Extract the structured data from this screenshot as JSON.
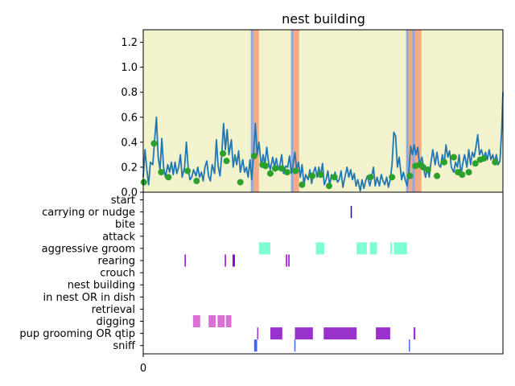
{
  "title": "nest building",
  "chart_data": [
    {
      "type": "line",
      "title": "nest building",
      "xlim": [
        0,
        600
      ],
      "ylim": [
        0,
        1.3
      ],
      "yticks": [
        "0.0",
        "0.2",
        "0.4",
        "0.6",
        "0.8",
        "1.0",
        "1.2"
      ],
      "ytick_values": [
        0,
        0.2,
        0.4,
        0.6,
        0.8,
        1.0,
        1.2
      ],
      "background_color": "#f2f2cc",
      "line_color": "#1f77b4",
      "marker_color": "#2ca02c",
      "highlight_spans": [
        {
          "x": [
            181,
            193
          ],
          "color": "#f4a582"
        },
        {
          "x": [
            249,
            260
          ],
          "color": "#f4a582"
        },
        {
          "x": [
            440,
            464
          ],
          "color": "#f4a582"
        }
      ],
      "marker_lines": [
        {
          "x": 181.5,
          "color": "#8ea8e0"
        },
        {
          "x": 248.5,
          "color": "#8ea8e0"
        },
        {
          "x": 440.5,
          "color": "#8ea8e0"
        },
        {
          "x": 451,
          "color": "#8ea8e0"
        }
      ],
      "series": [
        {
          "values": [
            [
              0,
              0.12
            ],
            [
              3,
              0.34
            ],
            [
              6,
              0.18
            ],
            [
              9,
              0.06
            ],
            [
              12,
              0.24
            ],
            [
              16,
              0.22
            ],
            [
              19,
              0.42
            ],
            [
              22,
              0.6
            ],
            [
              25,
              0.28
            ],
            [
              28,
              0.18
            ],
            [
              31,
              0.43
            ],
            [
              34,
              0.2
            ],
            [
              37,
              0.12
            ],
            [
              41,
              0.22
            ],
            [
              44,
              0.16
            ],
            [
              47,
              0.24
            ],
            [
              50,
              0.14
            ],
            [
              53,
              0.24
            ],
            [
              56,
              0.15
            ],
            [
              59,
              0.2
            ],
            [
              62,
              0.3
            ],
            [
              65,
              0.12
            ],
            [
              69,
              0.2
            ],
            [
              72,
              0.4
            ],
            [
              75,
              0.19
            ],
            [
              78,
              0.1
            ],
            [
              81,
              0.12
            ],
            [
              84,
              0.18
            ],
            [
              88,
              0.13
            ],
            [
              91,
              0.2
            ],
            [
              94,
              0.12
            ],
            [
              97,
              0.16
            ],
            [
              100,
              0.09
            ],
            [
              103,
              0.2
            ],
            [
              106,
              0.25
            ],
            [
              109,
              0.13
            ],
            [
              112,
              0.09
            ],
            [
              115,
              0.22
            ],
            [
              119,
              0.15
            ],
            [
              122,
              0.42
            ],
            [
              125,
              0.21
            ],
            [
              128,
              0.13
            ],
            [
              131,
              0.3
            ],
            [
              134,
              0.55
            ],
            [
              137,
              0.34
            ],
            [
              140,
              0.5
            ],
            [
              143,
              0.3
            ],
            [
              147,
              0.42
            ],
            [
              150,
              0.2
            ],
            [
              153,
              0.3
            ],
            [
              156,
              0.22
            ],
            [
              159,
              0.33
            ],
            [
              162,
              0.16
            ],
            [
              166,
              0.26
            ],
            [
              169,
              0.16
            ],
            [
              172,
              0.2
            ],
            [
              175,
              0.12
            ],
            [
              178,
              0.26
            ],
            [
              181,
              0.1
            ],
            [
              184,
              0.3
            ],
            [
              187,
              0.55
            ],
            [
              190,
              0.3
            ],
            [
              193,
              0.4
            ],
            [
              197,
              0.2
            ],
            [
              200,
              0.3
            ],
            [
              203,
              0.22
            ],
            [
              206,
              0.36
            ],
            [
              209,
              0.24
            ],
            [
              212,
              0.18
            ],
            [
              216,
              0.28
            ],
            [
              219,
              0.2
            ],
            [
              222,
              0.27
            ],
            [
              225,
              0.18
            ],
            [
              228,
              0.22
            ],
            [
              231,
              0.3
            ],
            [
              234,
              0.15
            ],
            [
              238,
              0.21
            ],
            [
              241,
              0.2
            ],
            [
              244,
              0.29
            ],
            [
              247,
              0.15
            ],
            [
              250,
              0.22
            ],
            [
              253,
              0.32
            ],
            [
              256,
              0.18
            ],
            [
              259,
              0.24
            ],
            [
              262,
              0.12
            ],
            [
              265,
              0.22
            ],
            [
              268,
              0.06
            ],
            [
              271,
              0.14
            ],
            [
              275,
              0.1
            ],
            [
              278,
              0.18
            ],
            [
              281,
              0.07
            ],
            [
              284,
              0.16
            ],
            [
              287,
              0.2
            ],
            [
              290,
              0.12
            ],
            [
              293,
              0.2
            ],
            [
              296,
              0.13
            ],
            [
              299,
              0.23
            ],
            [
              302,
              0.06
            ],
            [
              305,
              0.1
            ],
            [
              308,
              0.17
            ],
            [
              311,
              0.05
            ],
            [
              314,
              0.14
            ],
            [
              317,
              0.1
            ],
            [
              320,
              0.16
            ],
            [
              324,
              0.08
            ],
            [
              327,
              0.1
            ],
            [
              330,
              0.17
            ],
            [
              333,
              0.04
            ],
            [
              336,
              0.11
            ],
            [
              340,
              0.2
            ],
            [
              343,
              0.12
            ],
            [
              346,
              0.18
            ],
            [
              349,
              0.1
            ],
            [
              352,
              0.15
            ],
            [
              355,
              0.05
            ],
            [
              358,
              0.1
            ],
            [
              362,
              0.01
            ],
            [
              365,
              0.1
            ],
            [
              368,
              0.03
            ],
            [
              371,
              0.09
            ],
            [
              374,
              0.13
            ],
            [
              378,
              0.05
            ],
            [
              381,
              0.12
            ],
            [
              384,
              0.2
            ],
            [
              387,
              0.05
            ],
            [
              390,
              0.12
            ],
            [
              394,
              0.05
            ],
            [
              397,
              0.14
            ],
            [
              400,
              0.09
            ],
            [
              403,
              0.06
            ],
            [
              406,
              0.12
            ],
            [
              409,
              0.04
            ],
            [
              412,
              0.1
            ],
            [
              415,
              0.22
            ],
            [
              418,
              0.48
            ],
            [
              421,
              0.45
            ],
            [
              424,
              0.2
            ],
            [
              427,
              0.28
            ],
            [
              431,
              0.1
            ],
            [
              434,
              0.16
            ],
            [
              437,
              0.1
            ],
            [
              440,
              0.05
            ],
            [
              443,
              0.15
            ],
            [
              446,
              0.37
            ],
            [
              449,
              0.3
            ],
            [
              452,
              0.38
            ],
            [
              455,
              0.3
            ],
            [
              458,
              0.36
            ],
            [
              461,
              0.22
            ],
            [
              465,
              0.28
            ],
            [
              468,
              0.18
            ],
            [
              471,
              0.12
            ],
            [
              474,
              0.2
            ],
            [
              477,
              0.12
            ],
            [
              480,
              0.24
            ],
            [
              483,
              0.34
            ],
            [
              487,
              0.22
            ],
            [
              490,
              0.32
            ],
            [
              493,
              0.22
            ],
            [
              496,
              0.2
            ],
            [
              499,
              0.3
            ],
            [
              502,
              0.22
            ],
            [
              505,
              0.38
            ],
            [
              508,
              0.28
            ],
            [
              511,
              0.33
            ],
            [
              514,
              0.2
            ],
            [
              518,
              0.16
            ],
            [
              521,
              0.24
            ],
            [
              524,
              0.2
            ],
            [
              527,
              0.3
            ],
            [
              530,
              0.14
            ],
            [
              533,
              0.23
            ],
            [
              536,
              0.3
            ],
            [
              540,
              0.2
            ],
            [
              543,
              0.34
            ],
            [
              546,
              0.22
            ],
            [
              549,
              0.32
            ],
            [
              552,
              0.28
            ],
            [
              555,
              0.36
            ],
            [
              558,
              0.46
            ],
            [
              561,
              0.3
            ],
            [
              564,
              0.34
            ],
            [
              568,
              0.27
            ],
            [
              571,
              0.32
            ],
            [
              574,
              0.26
            ],
            [
              577,
              0.34
            ],
            [
              580,
              0.26
            ],
            [
              583,
              0.3
            ],
            [
              586,
              0.24
            ],
            [
              589,
              0.3
            ],
            [
              592,
              0.22
            ],
            [
              595,
              0.25
            ],
            [
              598,
              0.5
            ],
            [
              600,
              0.8
            ]
          ]
        }
      ],
      "points": [
        [
          1,
          0.08
        ],
        [
          18,
          0.39
        ],
        [
          30,
          0.16
        ],
        [
          42,
          0.12
        ],
        [
          74,
          0.17
        ],
        [
          89,
          0.09
        ],
        [
          133,
          0.31
        ],
        [
          139,
          0.25
        ],
        [
          162,
          0.08
        ],
        [
          185,
          0.29
        ],
        [
          199,
          0.22
        ],
        [
          204,
          0.21
        ],
        [
          212,
          0.15
        ],
        [
          220,
          0.19
        ],
        [
          231,
          0.19
        ],
        [
          240,
          0.16
        ],
        [
          254,
          0.17
        ],
        [
          265,
          0.06
        ],
        [
          282,
          0.13
        ],
        [
          296,
          0.14
        ],
        [
          310,
          0.05
        ],
        [
          319,
          0.12
        ],
        [
          379,
          0.12
        ],
        [
          415,
          0.12
        ],
        [
          445,
          0.13
        ],
        [
          454,
          0.21
        ],
        [
          461,
          0.22
        ],
        [
          467,
          0.2
        ],
        [
          475,
          0.18
        ],
        [
          490,
          0.13
        ],
        [
          502,
          0.24
        ],
        [
          518,
          0.28
        ],
        [
          525,
          0.16
        ],
        [
          532,
          0.14
        ],
        [
          543,
          0.16
        ],
        [
          554,
          0.23
        ],
        [
          562,
          0.26
        ],
        [
          568,
          0.27
        ],
        [
          587,
          0.24
        ]
      ]
    },
    {
      "type": "event-raster",
      "xlim": [
        0,
        600
      ],
      "xticks": [
        "0"
      ],
      "categories": [
        "start",
        "carrying or nudge",
        "bite",
        "attack",
        "aggressive groom",
        "rearing",
        "crouch",
        "nest building",
        "in nest OR in dish",
        "retrieval",
        "digging",
        "pup grooming OR qtip",
        "sniff"
      ],
      "row_colors": {
        "carrying or nudge": "#191970",
        "aggressive groom": "#7fffd4",
        "rearing": "#9400d3",
        "digging": "#da70d6",
        "pup grooming OR qtip": "#9932cc",
        "sniff": "#4169e1"
      },
      "events": {
        "carrying or nudge": [
          [
            346,
            348
          ]
        ],
        "aggressive groom": [
          [
            193,
            212
          ],
          [
            288,
            302
          ],
          [
            356,
            373
          ],
          [
            378,
            390
          ],
          [
            412,
            415
          ],
          [
            418,
            440
          ]
        ],
        "rearing": [
          [
            69,
            71
          ],
          [
            136,
            138
          ],
          [
            149,
            153
          ],
          [
            238,
            240
          ],
          [
            242,
            244
          ]
        ],
        "digging": [
          [
            83,
            95
          ],
          [
            109,
            121
          ],
          [
            124,
            136
          ],
          [
            138,
            147
          ]
        ],
        "pup grooming OR qtip": [
          [
            190,
            192
          ],
          [
            212,
            232
          ],
          [
            253,
            283
          ],
          [
            301,
            356
          ],
          [
            388,
            412
          ],
          [
            451,
            454
          ]
        ],
        "sniff": [
          [
            185,
            190
          ],
          [
            252,
            253
          ],
          [
            443,
            444
          ]
        ]
      }
    }
  ]
}
